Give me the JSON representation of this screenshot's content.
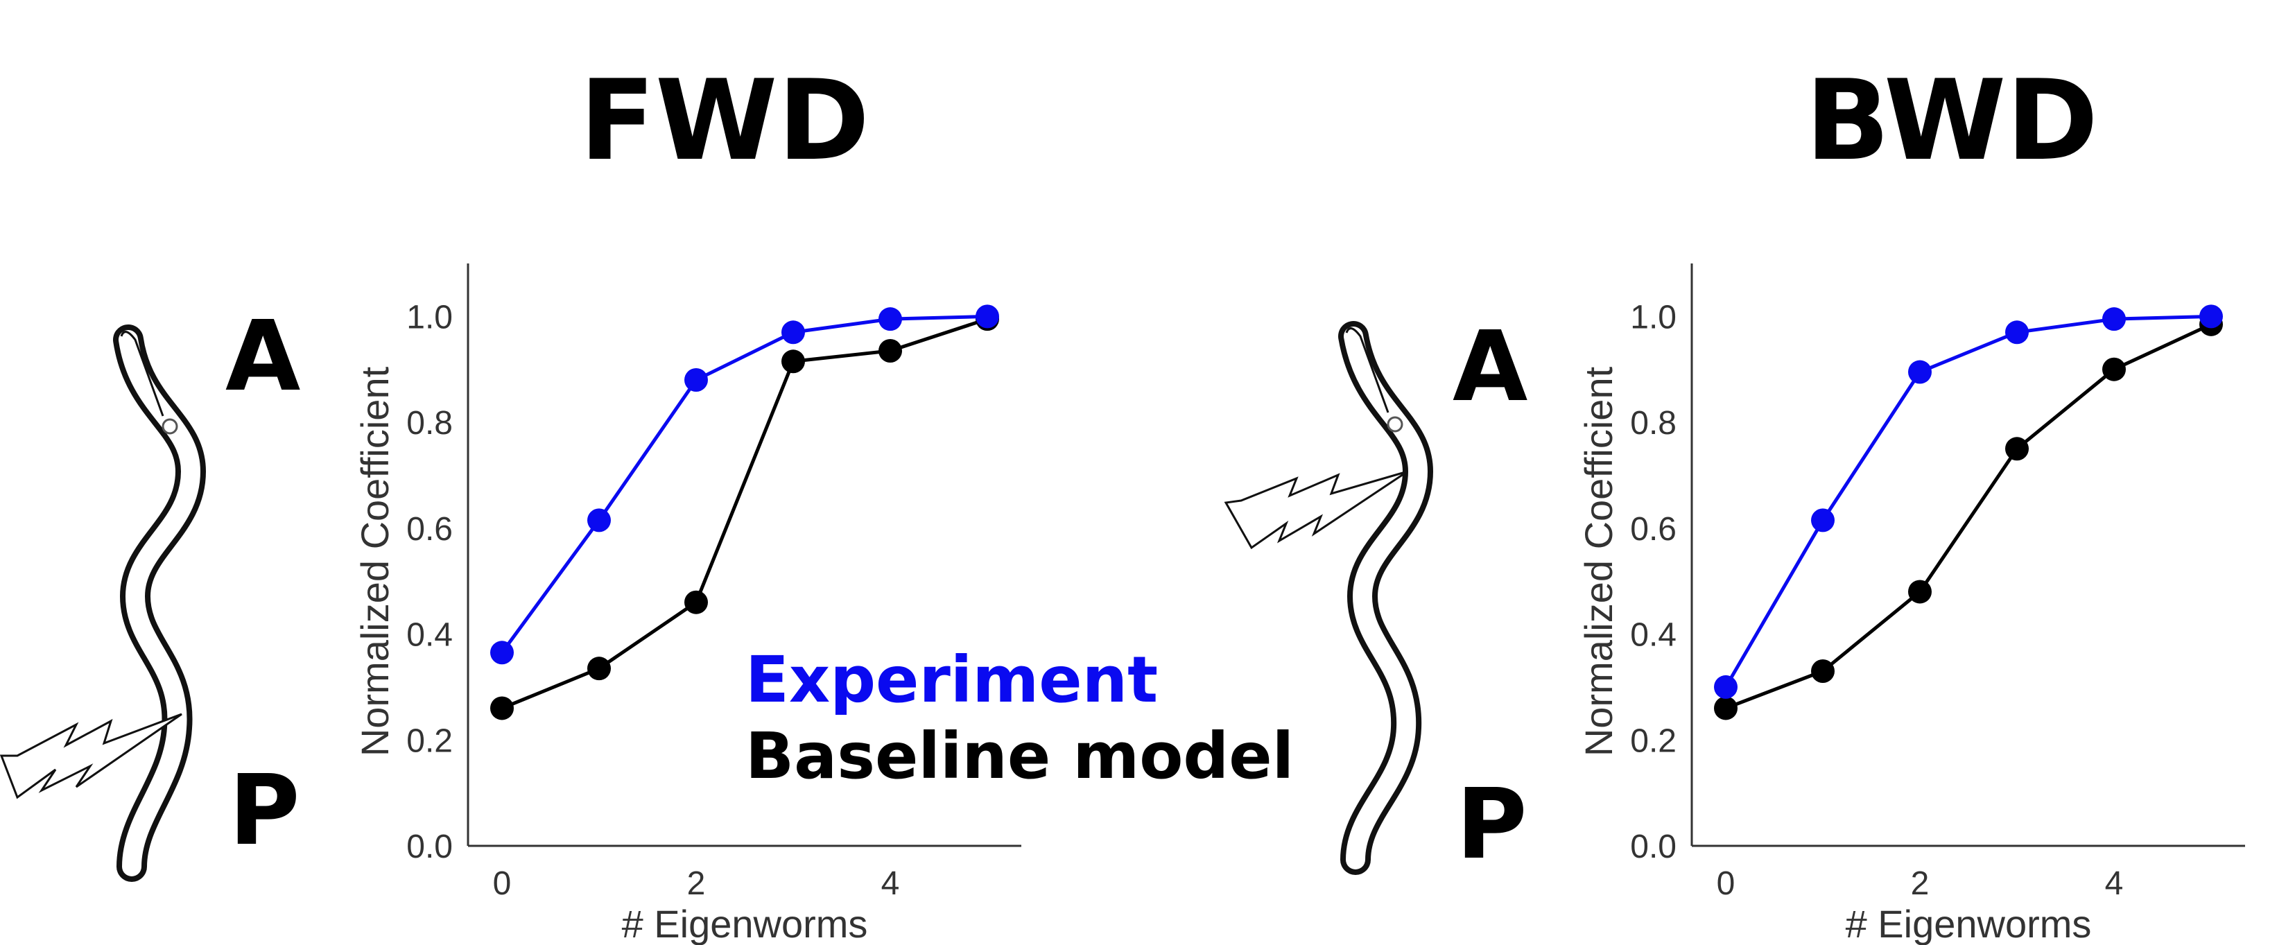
{
  "panels": {
    "fwd": {
      "title": "FWD",
      "anterior_label": "A",
      "posterior_label": "P"
    },
    "bwd": {
      "title": "BWD",
      "anterior_label": "A",
      "posterior_label": "P"
    }
  },
  "legend": {
    "experiment": {
      "label": "Experiment",
      "color": "#0a0af0"
    },
    "baseline": {
      "label": "Baseline model",
      "color": "#000000"
    }
  },
  "chart_data": [
    {
      "type": "line",
      "title": "FWD",
      "xlabel": "# Eigenworms",
      "ylabel": "Normalized Coefficient",
      "xlim": [
        -0.35,
        5.35
      ],
      "ylim": [
        0.0,
        1.1
      ],
      "xticks": [
        0,
        2,
        4
      ],
      "yticks": [
        0.0,
        0.2,
        0.4,
        0.6,
        0.8,
        1.0
      ],
      "grid": false,
      "x": [
        0,
        1,
        2,
        3,
        4,
        5
      ],
      "series": [
        {
          "name": "Experiment",
          "color": "#0a0af0",
          "values": [
            0.365,
            0.615,
            0.88,
            0.97,
            0.995,
            1.0
          ]
        },
        {
          "name": "Baseline model",
          "color": "#000000",
          "values": [
            0.26,
            0.335,
            0.46,
            0.915,
            0.935,
            0.995
          ]
        }
      ]
    },
    {
      "type": "line",
      "title": "BWD",
      "xlabel": "# Eigenworms",
      "ylabel": "Normalized Coefficient",
      "xlim": [
        -0.35,
        5.35
      ],
      "ylim": [
        0.0,
        1.1
      ],
      "xticks": [
        0,
        2,
        4
      ],
      "yticks": [
        0.0,
        0.2,
        0.4,
        0.6,
        0.8,
        1.0
      ],
      "grid": false,
      "x": [
        0,
        1,
        2,
        3,
        4,
        5
      ],
      "series": [
        {
          "name": "Experiment",
          "color": "#0a0af0",
          "values": [
            0.3,
            0.615,
            0.895,
            0.97,
            0.995,
            1.0
          ]
        },
        {
          "name": "Baseline model",
          "color": "#000000",
          "values": [
            0.26,
            0.33,
            0.48,
            0.75,
            0.9,
            0.985
          ]
        }
      ]
    }
  ]
}
